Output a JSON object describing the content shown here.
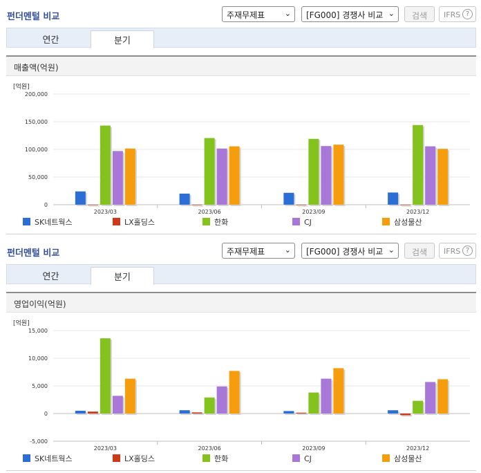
{
  "legend": [
    {
      "name": "SK네트웍스",
      "color": "#2b6fd6"
    },
    {
      "name": "LX홀딩스",
      "color": "#cc3a1a"
    },
    {
      "name": "한화",
      "color": "#84c21e"
    },
    {
      "name": "CJ",
      "color": "#a778d8"
    },
    {
      "name": "삼성물산",
      "color": "#f59d0c"
    }
  ],
  "panels": [
    {
      "title": "펀더멘털 비교",
      "select1": "주재무제표",
      "select2": "[FG000] 경쟁사 비교",
      "search_label": "검색",
      "ifrs_label": "IFRS",
      "help_icon": "?",
      "tabs": [
        "연간",
        "분기"
      ],
      "active_tab": "분기",
      "subtitle": "매출액(억원)",
      "unit": "[억원]"
    },
    {
      "title": "펀더멘털 비교",
      "select1": "주재무제표",
      "select2": "[FG000] 경쟁사 비교",
      "search_label": "검색",
      "ifrs_label": "IFRS",
      "help_icon": "?",
      "tabs": [
        "연간",
        "분기"
      ],
      "active_tab": "분기",
      "subtitle": "영업이익(억원)",
      "unit": "[억원]"
    }
  ],
  "chart_data": [
    {
      "type": "bar",
      "title": "",
      "ylabel": "",
      "categories": [
        "2023/03",
        "2023/06",
        "2023/09",
        "2023/12"
      ],
      "ylim": [
        0,
        200000
      ],
      "yticks": [
        0,
        50000,
        100000,
        150000,
        200000
      ],
      "ytick_labels": [
        "0",
        "50,000",
        "100,000",
        "150,000",
        "200,000"
      ],
      "grid": true,
      "legend_position": "bottom",
      "series": [
        {
          "name": "SK네트웍스",
          "values": [
            24000,
            20000,
            21500,
            22000
          ]
        },
        {
          "name": "LX홀딩스",
          "values": [
            0,
            0,
            0,
            0
          ]
        },
        {
          "name": "한화",
          "values": [
            143000,
            120500,
            119000,
            144000
          ]
        },
        {
          "name": "CJ",
          "values": [
            97000,
            101500,
            106000,
            105500
          ]
        },
        {
          "name": "삼성물산",
          "values": [
            101500,
            105500,
            108500,
            101000
          ]
        }
      ]
    },
    {
      "type": "bar",
      "title": "",
      "ylabel": "",
      "categories": [
        "2023/03",
        "2023/06",
        "2023/09",
        "2023/12"
      ],
      "ylim": [
        -5000,
        15000
      ],
      "yticks": [
        -5000,
        0,
        5000,
        10000,
        15000
      ],
      "ytick_labels": [
        "-5,000",
        "0",
        "5,000",
        "10,000",
        "15,000"
      ],
      "grid": true,
      "legend_position": "bottom",
      "series": [
        {
          "name": "SK네트웍스",
          "values": [
            500,
            600,
            450,
            600
          ]
        },
        {
          "name": "LX홀딩스",
          "values": [
            350,
            200,
            150,
            -300
          ]
        },
        {
          "name": "한화",
          "values": [
            13600,
            2900,
            3800,
            2300
          ]
        },
        {
          "name": "CJ",
          "values": [
            3200,
            4900,
            6300,
            5700
          ]
        },
        {
          "name": "삼성물산",
          "values": [
            6300,
            7700,
            8200,
            6200
          ]
        }
      ]
    }
  ]
}
